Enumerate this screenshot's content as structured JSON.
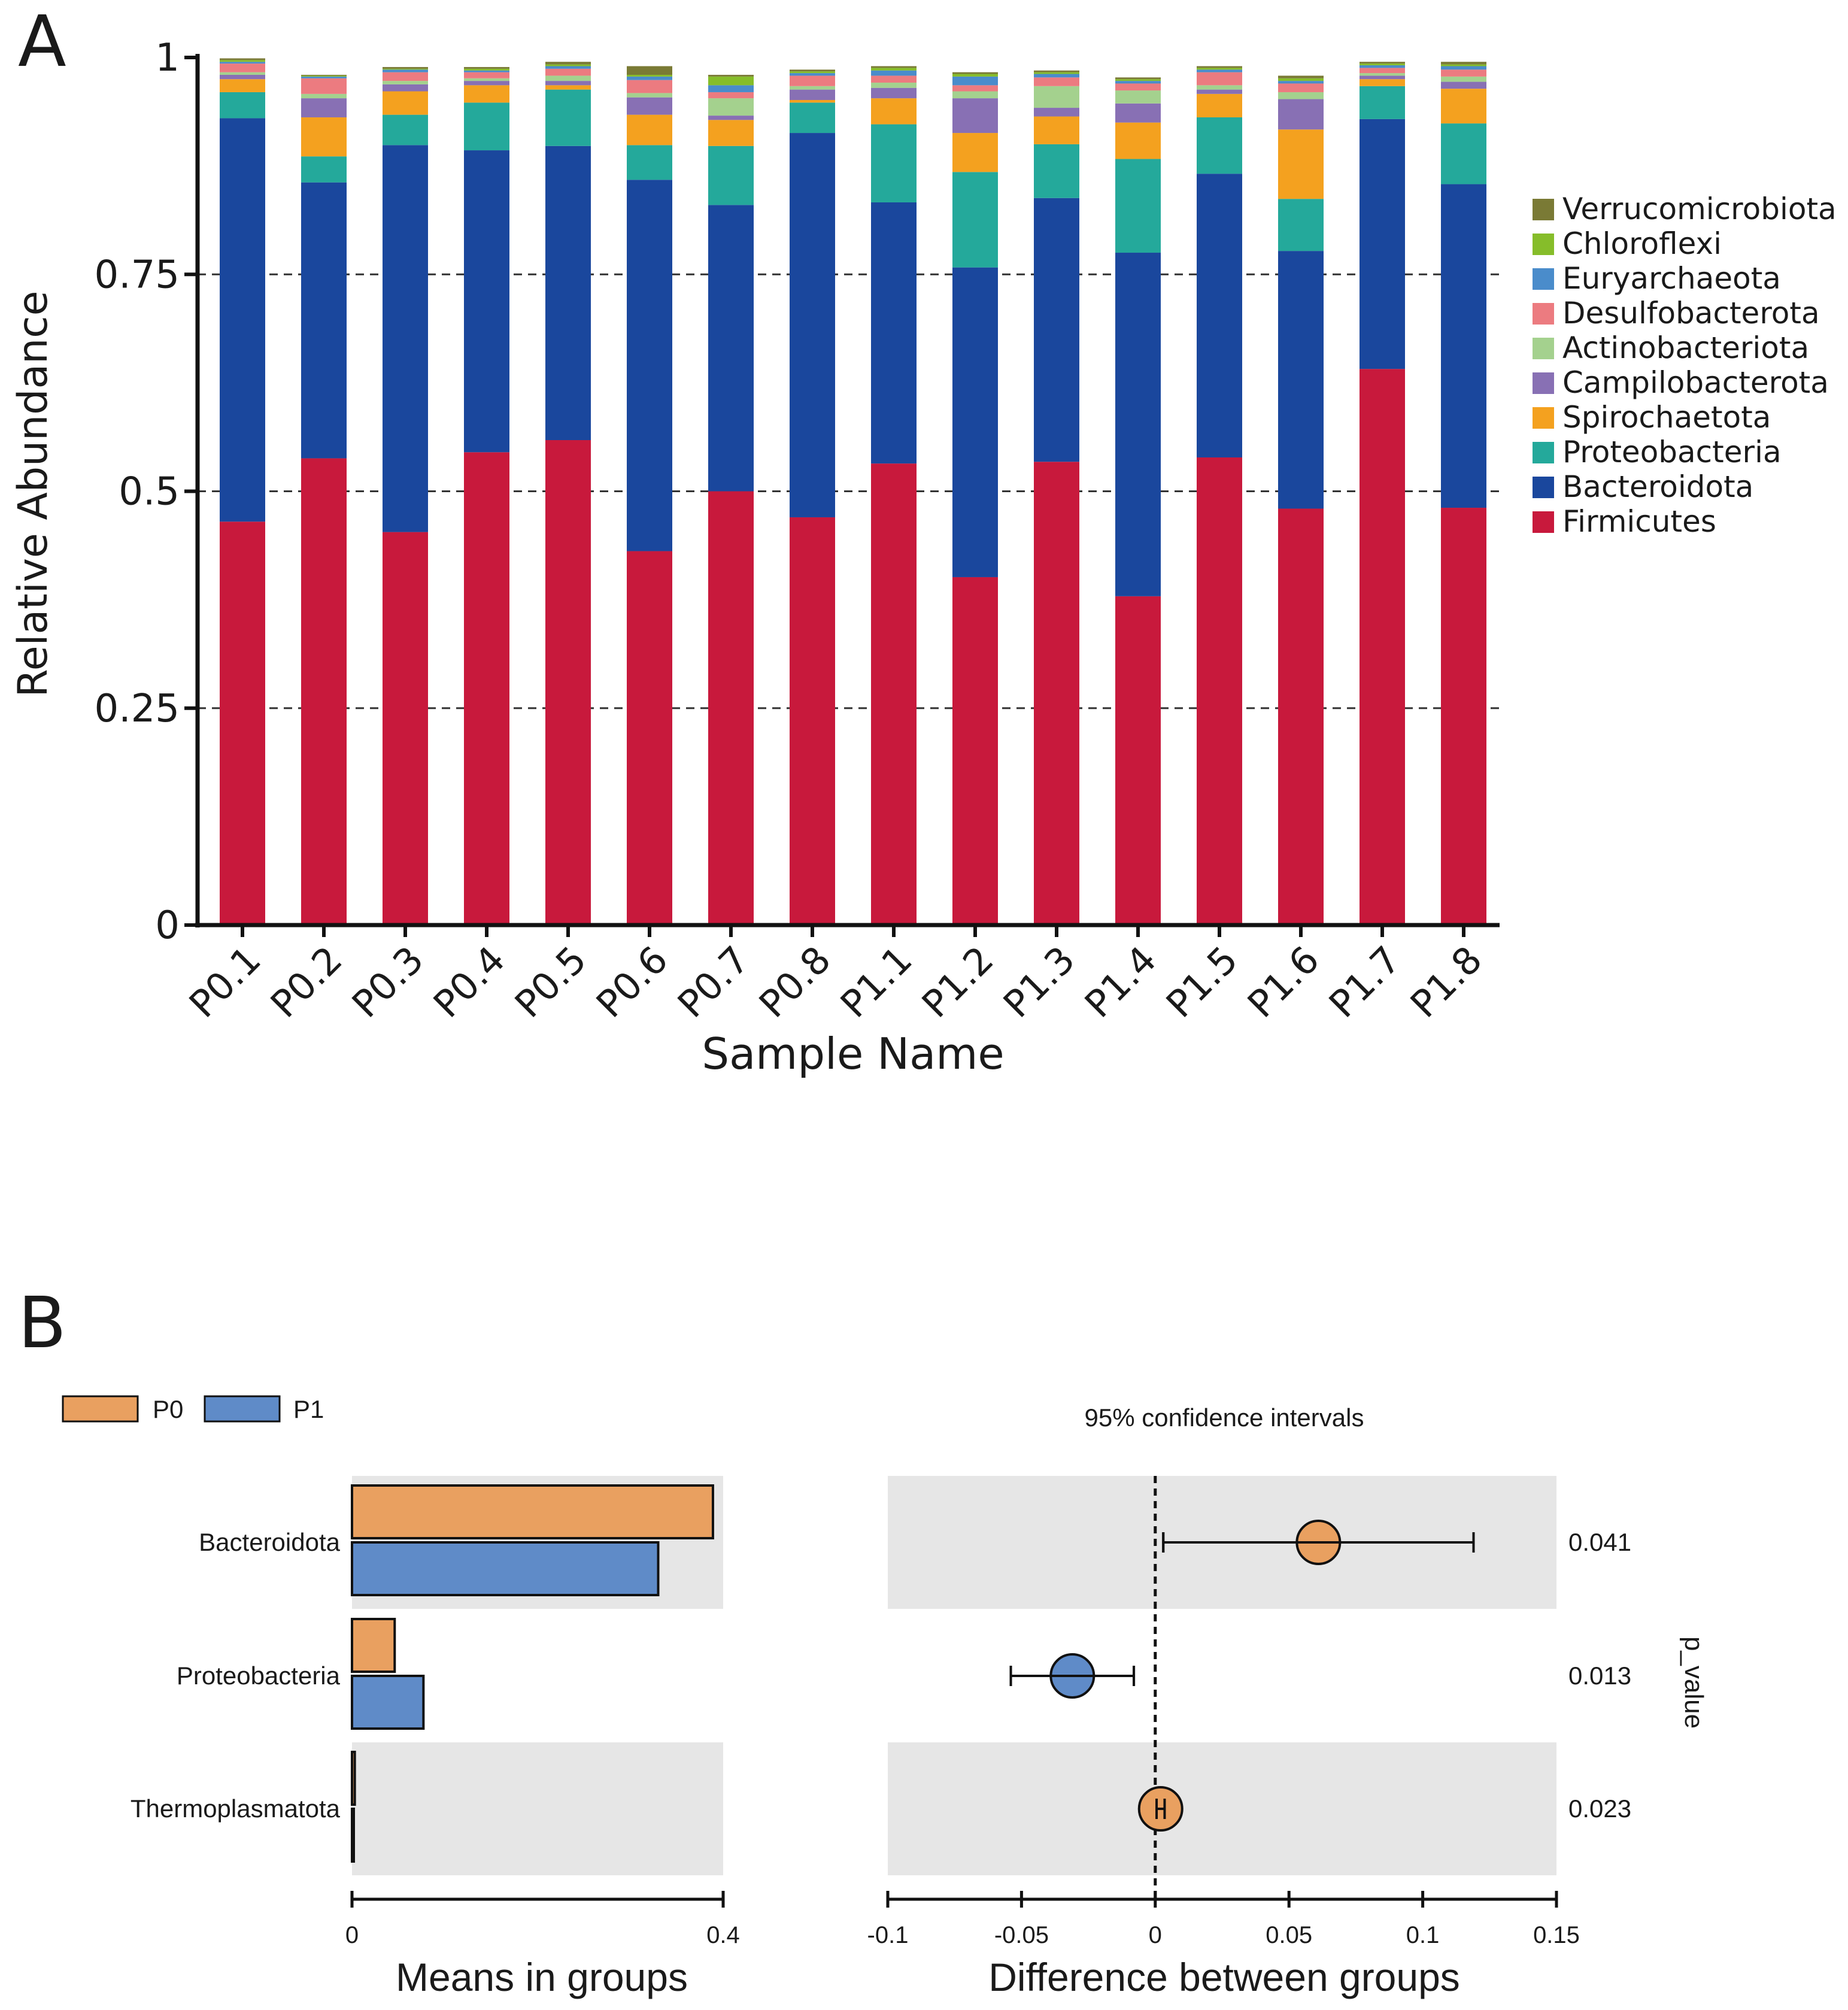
{
  "panel_a": {
    "label": "A",
    "chart_data": {
      "type": "bar",
      "stacked": true,
      "title": "",
      "xlabel": "Sample Name",
      "ylabel": "Relative Abundance",
      "ylim": [
        0,
        1
      ],
      "yticks": [
        0,
        0.25,
        0.5,
        0.75,
        1
      ],
      "ytick_labels": [
        "0",
        "0.25",
        "0.5",
        "0.75",
        "1"
      ],
      "grid": "dashed horizontal at 0.25, 0.5, 0.75",
      "legend_position": "right",
      "categories": [
        "P0.1",
        "P0.2",
        "P0.3",
        "P0.4",
        "P0.5",
        "P0.6",
        "P0.7",
        "P0.8",
        "P1.1",
        "P1.2",
        "P1.3",
        "P1.4",
        "P1.5",
        "P1.6",
        "P1.7",
        "P1.8"
      ],
      "series": [
        {
          "name": "Firmicutes",
          "color": "#C8193C",
          "values": [
            0.465,
            0.538,
            0.453,
            0.545,
            0.559,
            0.431,
            0.5,
            0.47,
            0.532,
            0.401,
            0.534,
            0.379,
            0.539,
            0.48,
            0.641,
            0.481
          ]
        },
        {
          "name": "Bacteroidota",
          "color": "#1A479D",
          "values": [
            0.465,
            0.318,
            0.446,
            0.348,
            0.339,
            0.428,
            0.33,
            0.443,
            0.301,
            0.357,
            0.304,
            0.396,
            0.327,
            0.297,
            0.288,
            0.373
          ]
        },
        {
          "name": "Proteobacteria",
          "color": "#24A99B",
          "values": [
            0.03,
            0.03,
            0.035,
            0.055,
            0.065,
            0.04,
            0.068,
            0.035,
            0.09,
            0.11,
            0.062,
            0.108,
            0.065,
            0.06,
            0.038,
            0.07
          ]
        },
        {
          "name": "Spirochaetota",
          "color": "#F4A11F",
          "values": [
            0.015,
            0.045,
            0.027,
            0.02,
            0.005,
            0.035,
            0.03,
            0.003,
            0.03,
            0.045,
            0.032,
            0.042,
            0.027,
            0.08,
            0.008,
            0.04
          ]
        },
        {
          "name": "Campilobacterota",
          "color": "#8870B4",
          "values": [
            0.005,
            0.022,
            0.008,
            0.005,
            0.005,
            0.02,
            0.005,
            0.012,
            0.012,
            0.04,
            0.01,
            0.022,
            0.005,
            0.035,
            0.004,
            0.008
          ]
        },
        {
          "name": "Actinobacteriota",
          "color": "#A4D18E",
          "values": [
            0.003,
            0.005,
            0.004,
            0.003,
            0.006,
            0.005,
            0.02,
            0.004,
            0.006,
            0.008,
            0.025,
            0.015,
            0.005,
            0.008,
            0.003,
            0.006
          ]
        },
        {
          "name": "Desulfobacterota",
          "color": "#EC7B80",
          "values": [
            0.01,
            0.018,
            0.01,
            0.007,
            0.008,
            0.015,
            0.007,
            0.012,
            0.008,
            0.007,
            0.01,
            0.008,
            0.015,
            0.01,
            0.006,
            0.008
          ]
        },
        {
          "name": "Euryarchaeota",
          "color": "#4A8CCB",
          "values": [
            0.002,
            0.002,
            0.003,
            0.002,
            0.003,
            0.004,
            0.008,
            0.003,
            0.006,
            0.01,
            0.004,
            0.003,
            0.003,
            0.003,
            0.003,
            0.004
          ]
        },
        {
          "name": "Chloroflexi",
          "color": "#86BD2A",
          "values": [
            0.002,
            0.001,
            0.001,
            0.002,
            0.002,
            0.002,
            0.01,
            0.002,
            0.003,
            0.003,
            0.002,
            0.002,
            0.002,
            0.003,
            0.002,
            0.002
          ]
        },
        {
          "name": "Verrucomicrobiota",
          "color": "#7A7A35",
          "values": [
            0.002,
            0.001,
            0.002,
            0.002,
            0.003,
            0.01,
            0.002,
            0.002,
            0.002,
            0.002,
            0.002,
            0.002,
            0.002,
            0.003,
            0.002,
            0.003
          ]
        }
      ]
    }
  },
  "panel_b": {
    "label": "B",
    "legend": [
      {
        "name": "P0",
        "color": "#E9A060"
      },
      {
        "name": "P1",
        "color": "#5F8BC8"
      }
    ],
    "ci_title": "95% confidence intervals",
    "p_value_label": "p_value",
    "chart_data": [
      {
        "type": "bar",
        "orientation": "horizontal",
        "xlabel": "Means in groups",
        "xlim": [
          0,
          0.4
        ],
        "xticks": [
          0,
          0.4
        ],
        "xtick_labels": [
          "0",
          "0.4"
        ],
        "categories": [
          "Bacteroidota",
          "Proteobacteria",
          "Thermoplasmatota"
        ],
        "series": [
          {
            "name": "P0",
            "color": "#E9A060",
            "values": [
              0.389,
              0.046,
              0.003
            ]
          },
          {
            "name": "P1",
            "color": "#5F8BC8",
            "values": [
              0.33,
              0.077,
              0.001
            ]
          }
        ]
      },
      {
        "type": "scatter",
        "subtype": "errorbar",
        "title": "95% confidence intervals",
        "xlabel": "Difference between groups",
        "xlim": [
          -0.1,
          0.15
        ],
        "xticks": [
          -0.1,
          -0.05,
          0,
          0.05,
          0.1,
          0.15
        ],
        "xtick_labels": [
          "-0.1",
          "-0.05",
          "0",
          "0.05",
          "0.1",
          "0.15"
        ],
        "points": [
          {
            "category": "Bacteroidota",
            "diff": 0.061,
            "ci_low": 0.003,
            "ci_high": 0.119,
            "p_value": "0.041",
            "color": "#E9A060"
          },
          {
            "category": "Proteobacteria",
            "diff": -0.031,
            "ci_low": -0.054,
            "ci_high": -0.008,
            "p_value": "0.013",
            "color": "#5F8BC8"
          },
          {
            "category": "Thermoplasmatota",
            "diff": 0.002,
            "ci_low": 0.0005,
            "ci_high": 0.0035,
            "p_value": "0.023",
            "color": "#E9A060"
          }
        ]
      }
    ]
  }
}
